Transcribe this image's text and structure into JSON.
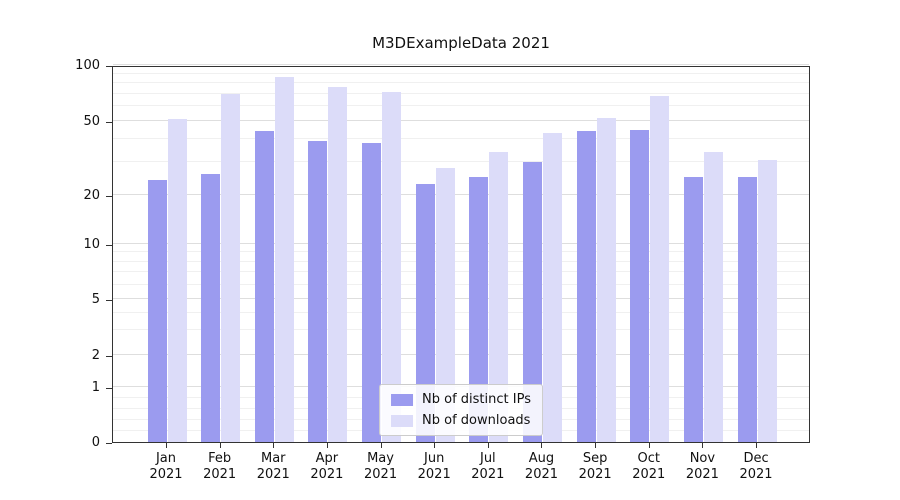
{
  "chart_data": {
    "type": "bar",
    "title": "M3DExampleData 2021",
    "categories": [
      "Jan",
      "Feb",
      "Mar",
      "Apr",
      "May",
      "Jun",
      "Jul",
      "Aug",
      "Sep",
      "Oct",
      "Nov",
      "Dec"
    ],
    "x_year_label": "2021",
    "series": [
      {
        "name": "Nb of distinct IPs",
        "color": "#9b9bef",
        "values": [
          24,
          26,
          44,
          39,
          38,
          23,
          25,
          30,
          44,
          45,
          25,
          25
        ]
      },
      {
        "name": "Nb of downloads",
        "color": "#dcdcf9",
        "values": [
          51,
          70,
          86,
          76,
          72,
          28,
          34,
          43,
          52,
          68,
          34,
          31
        ]
      }
    ],
    "y_ticks": [
      0,
      1,
      2,
      5,
      10,
      20,
      50,
      100
    ],
    "y_scale": "symlog",
    "ylim": [
      0,
      100
    ],
    "grid": "horizontal",
    "legend_position": "lower center"
  }
}
